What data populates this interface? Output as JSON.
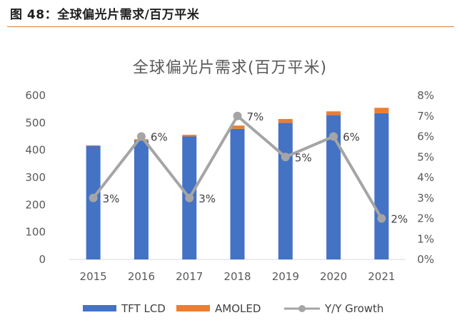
{
  "figure": {
    "title": "图 48：全球偏光片需求/百万平米"
  },
  "colors": {
    "tft": "#4472C4",
    "amoled": "#ED7D31",
    "growth": "#A5A5A5",
    "rule": "#E07A2E"
  },
  "chart_data": {
    "type": "bar",
    "title": "全球偏光片需求(百万平米)",
    "categories": [
      "2015",
      "2016",
      "2017",
      "2018",
      "2019",
      "2020",
      "2021"
    ],
    "series": [
      {
        "name": "TFT LCD",
        "kind": "stacked-bar",
        "axis": "left",
        "values": [
          415,
          435,
          450,
          478,
          500,
          528,
          535
        ]
      },
      {
        "name": "AMOLED",
        "kind": "stacked-bar",
        "axis": "left",
        "values": [
          3,
          5,
          6,
          12,
          14,
          14,
          20
        ]
      },
      {
        "name": "Y/Y Growth",
        "kind": "line",
        "axis": "right",
        "values": [
          3,
          6,
          3,
          7,
          5,
          6,
          2
        ],
        "labels": [
          "3%",
          "6%",
          "3%",
          "7%",
          "5%",
          "6%",
          "2%"
        ]
      }
    ],
    "yleft": {
      "range": [
        0,
        600
      ],
      "ticks": [
        0,
        100,
        200,
        300,
        400,
        500,
        600
      ],
      "tick_labels": [
        "0",
        "100",
        "200",
        "300",
        "400",
        "500",
        "600"
      ]
    },
    "yright": {
      "range": [
        0,
        8
      ],
      "ticks": [
        0,
        1,
        2,
        3,
        4,
        5,
        6,
        7,
        8
      ],
      "tick_labels": [
        "0%",
        "1%",
        "2%",
        "3%",
        "4%",
        "5%",
        "6%",
        "7%",
        "8%"
      ]
    },
    "legend": {
      "position": "bottom",
      "items": [
        "TFT LCD",
        "AMOLED",
        "Y/Y Growth"
      ]
    },
    "grid": false
  }
}
